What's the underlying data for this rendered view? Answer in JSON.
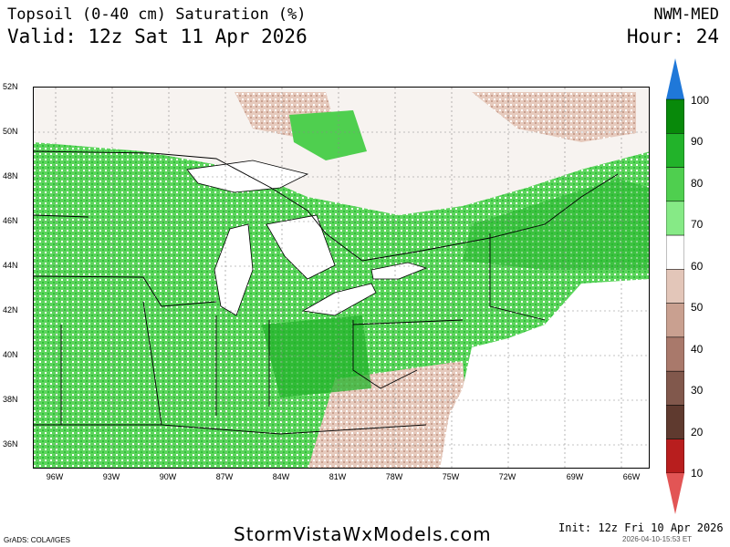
{
  "header": {
    "title": "Topsoil (0-40 cm) Saturation (%)",
    "valid": "Valid: 12z Sat 11 Apr 2026",
    "model": "NWM-MED",
    "hour": "Hour: 24"
  },
  "map": {
    "lat_labels": [
      "52N",
      "50N",
      "48N",
      "46N",
      "44N",
      "42N",
      "40N",
      "38N",
      "36N"
    ],
    "lon_labels": [
      "96W",
      "93W",
      "90W",
      "87W",
      "84W",
      "81W",
      "78W",
      "75W",
      "72W",
      "69W",
      "66W"
    ]
  },
  "colorbar": {
    "labels": [
      "100",
      "90",
      "80",
      "70",
      "60",
      "50",
      "40",
      "30",
      "20",
      "10"
    ],
    "colors": [
      "#1f78d9",
      "#08890a",
      "#22b32a",
      "#4fcf4f",
      "#86ea86",
      "#ffffff",
      "#e3c6b9",
      "#c9a090",
      "#a9796b",
      "#81584c",
      "#5f3a2f",
      "#b81e1e",
      "#e25555"
    ]
  },
  "footer": {
    "site": "StormVistaWxModels.com",
    "grads": "GrADS: COLA/IGES",
    "init": "Init: 12z Fri 10 Apr 2026",
    "timestamp": "2026-04-10-15:53 ET"
  }
}
